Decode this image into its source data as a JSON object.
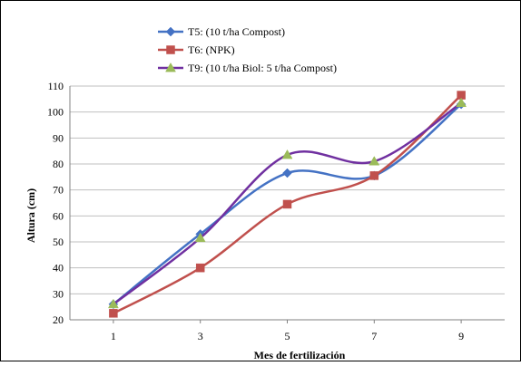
{
  "chart_data": {
    "type": "line",
    "title": "",
    "xlabel": "Mes de  fertilización",
    "ylabel": "Altura (cm)",
    "x": [
      1,
      3,
      5,
      7,
      9
    ],
    "x_ticks": [
      "1",
      "3",
      "5",
      "7",
      "9"
    ],
    "ylim": [
      20,
      110
    ],
    "y_ticks": [
      "20",
      "30",
      "40",
      "50",
      "60",
      "70",
      "80",
      "90",
      "100",
      "110"
    ],
    "grid": "horizontal",
    "legend_placement": "top-center",
    "series": [
      {
        "name": "T5: (10 t/ha Compost)",
        "color": "#4472C4",
        "marker": "diamond",
        "values": [
          26,
          53,
          76.5,
          75.5,
          103
        ]
      },
      {
        "name": "T6: (NPK)",
        "color": "#C0504D",
        "marker": "square",
        "values": [
          22.5,
          40,
          64.5,
          75.5,
          106.5
        ]
      },
      {
        "name": "T9: (10 t/ha Biol: 5 t/ha Compost)",
        "color": "#7030A0",
        "marker": "triangle",
        "marker_color": "#9BBB59",
        "values": [
          26,
          51.5,
          83.5,
          81,
          103.5
        ]
      }
    ]
  }
}
